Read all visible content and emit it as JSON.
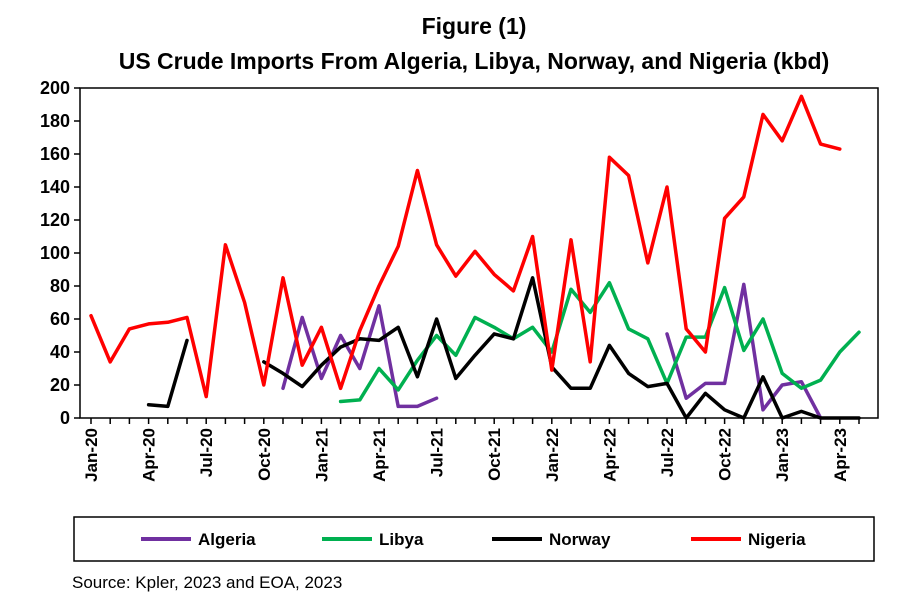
{
  "chart_data": {
    "type": "line",
    "title": "Figure (1)",
    "subtitle": "US Crude Imports From Algeria, Libya, Norway, and Nigeria (kbd)",
    "source": "Source: Kpler, 2023 and EOA, 2023",
    "xlabel": "",
    "ylabel": "",
    "ylim": [
      0,
      200
    ],
    "yticks": [
      0,
      20,
      40,
      60,
      80,
      100,
      120,
      140,
      160,
      180,
      200
    ],
    "x": [
      "Jan-20",
      "Feb-20",
      "Mar-20",
      "Apr-20",
      "May-20",
      "Jun-20",
      "Jul-20",
      "Aug-20",
      "Sep-20",
      "Oct-20",
      "Nov-20",
      "Dec-20",
      "Jan-21",
      "Feb-21",
      "Mar-21",
      "Apr-21",
      "May-21",
      "Jun-21",
      "Jul-21",
      "Aug-21",
      "Sep-21",
      "Oct-21",
      "Nov-21",
      "Dec-21",
      "Jan-22",
      "Feb-22",
      "Mar-22",
      "Apr-22",
      "May-22",
      "Jun-22",
      "Jul-22",
      "Aug-22",
      "Sep-22",
      "Oct-22",
      "Nov-22",
      "Dec-22",
      "Jan-23",
      "Feb-23",
      "Mar-23",
      "Apr-23",
      "May-23"
    ],
    "xtick_labels": [
      "Jan-20",
      "Apr-20",
      "Jul-20",
      "Oct-20",
      "Jan-21",
      "Apr-21",
      "Jul-21",
      "Oct-21",
      "Jan-22",
      "Apr-22",
      "Jul-22",
      "Oct-22",
      "Jan-23",
      "Apr-23"
    ],
    "grid": false,
    "legend_position": "bottom",
    "series": [
      {
        "name": "Algeria",
        "color": "#7030A0",
        "values": [
          null,
          null,
          null,
          null,
          null,
          null,
          null,
          null,
          null,
          null,
          18,
          61,
          24,
          50,
          30,
          68,
          7,
          7,
          12,
          null,
          null,
          null,
          null,
          null,
          null,
          null,
          null,
          null,
          null,
          null,
          51,
          12,
          21,
          21,
          81,
          5,
          20,
          22,
          0,
          null,
          null
        ]
      },
      {
        "name": "Libya",
        "color": "#00B050",
        "values": [
          null,
          null,
          null,
          null,
          null,
          null,
          null,
          null,
          null,
          null,
          null,
          null,
          null,
          10,
          11,
          30,
          17,
          35,
          50,
          38,
          61,
          55,
          48,
          55,
          40,
          78,
          64,
          82,
          54,
          48,
          21,
          49,
          49,
          79,
          41,
          60,
          27,
          18,
          23,
          40,
          52
        ]
      },
      {
        "name": "Norway",
        "color": "#000000",
        "values": [
          null,
          null,
          null,
          8,
          7,
          47,
          null,
          null,
          null,
          34,
          27,
          19,
          32,
          43,
          48,
          47,
          55,
          25,
          60,
          24,
          38,
          51,
          48,
          85,
          31,
          18,
          18,
          44,
          27,
          19,
          21,
          0,
          15,
          5,
          0,
          25,
          0,
          4,
          0,
          0,
          0
        ]
      },
      {
        "name": "Nigeria",
        "color": "#FF0000",
        "values": [
          62,
          34,
          54,
          57,
          58,
          61,
          13,
          105,
          70,
          20,
          85,
          32,
          55,
          18,
          53,
          80,
          104,
          150,
          105,
          86,
          101,
          87,
          77,
          110,
          29,
          108,
          34,
          158,
          147,
          94,
          140,
          54,
          40,
          121,
          134,
          184,
          168,
          195,
          166,
          163,
          null
        ]
      }
    ]
  }
}
